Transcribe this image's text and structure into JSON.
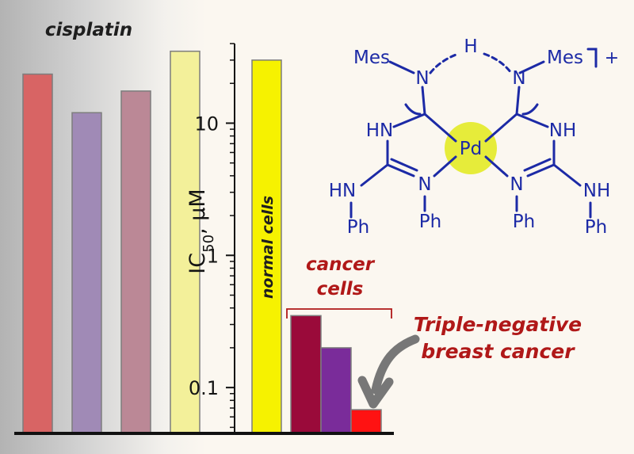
{
  "chart_data": {
    "type": "bar",
    "ylabel_main": "IC",
    "ylabel_sub": "50",
    "ylabel_unit": ", μM",
    "yscale": "log",
    "ylim": [
      0.045,
      40
    ],
    "yticks": [
      {
        "value": 10,
        "label": "10"
      },
      {
        "value": 1,
        "label": "1"
      },
      {
        "value": 0.1,
        "label": "0.1"
      }
    ],
    "groups": [
      {
        "label": "cisplatin",
        "bars": [
          {
            "value": 23.5,
            "color": "#d86464"
          },
          {
            "value": 12.0,
            "color": "#a08ab6"
          },
          {
            "value": 17.5,
            "color": "#bb8896"
          },
          {
            "value": 35.0,
            "color": "#f3f09a"
          }
        ]
      },
      {
        "label": "normal cells",
        "bars": [
          {
            "value": 30.0,
            "color": "#f6f200"
          }
        ]
      },
      {
        "label": "cancer cells",
        "bars": [
          {
            "value": 0.35,
            "color": "#9a0a3a"
          },
          {
            "value": 0.2,
            "color": "#7a2c9a"
          },
          {
            "value": 0.068,
            "color": "#ff1212"
          }
        ]
      }
    ],
    "annotation": {
      "line1": "Triple-negative",
      "line2": "breast cancer"
    }
  },
  "molecule": {
    "charge": "+",
    "metal": "Pd",
    "mes_left": "Mes",
    "mes_right": "Mes",
    "bridge_h": "H",
    "n": "N",
    "hn": "HN",
    "nh": "NH",
    "ph": "Ph"
  },
  "colors": {
    "structure": "#1c2aa6",
    "annotation": "#b01818",
    "pd_glow": "#e6ec3a"
  }
}
